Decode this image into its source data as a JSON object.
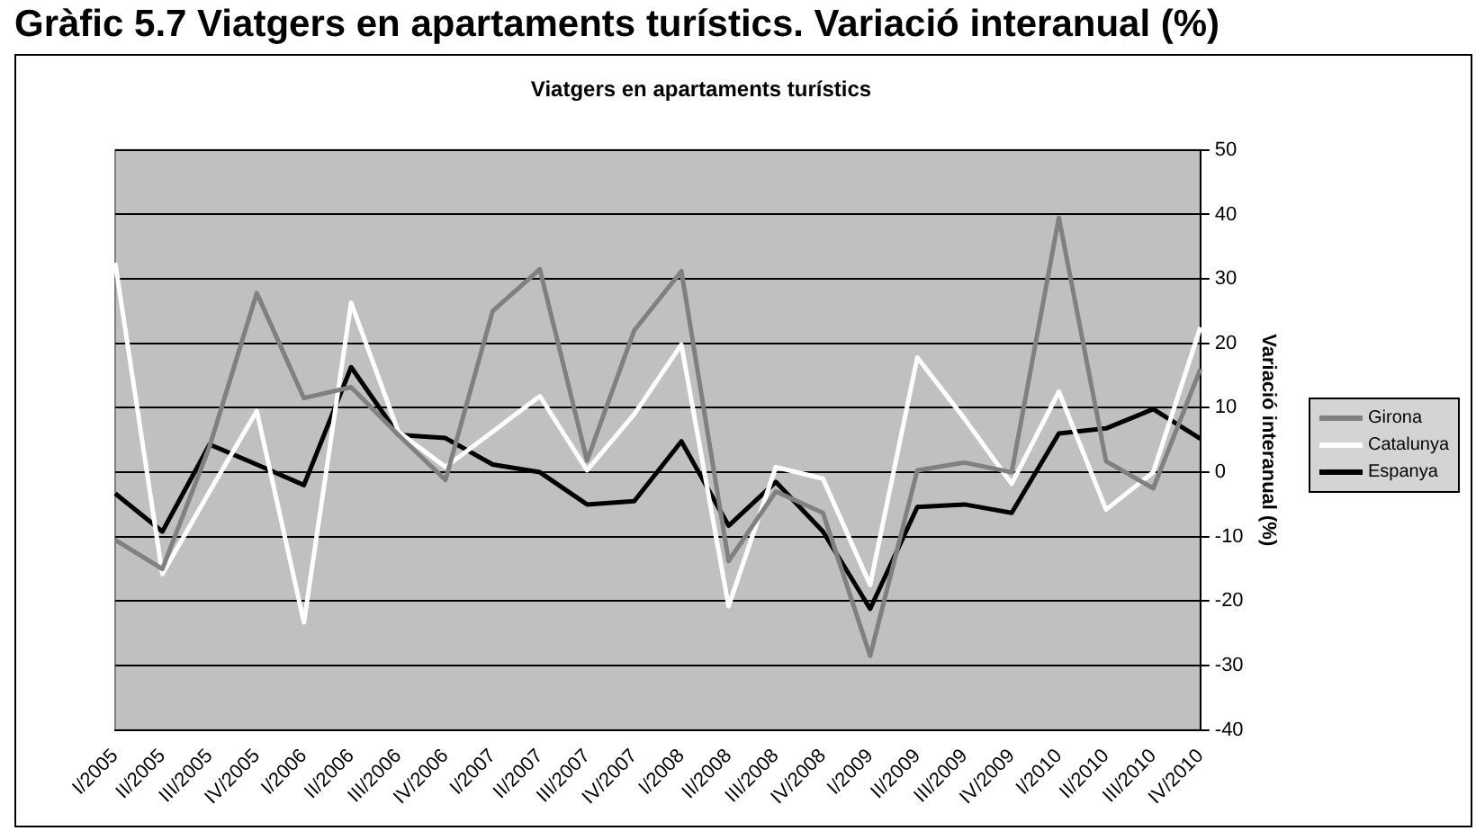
{
  "chart_data": {
    "type": "line",
    "title": "Gràfic 5.7 Viatgers en apartaments turístics. Variació interanual (%)",
    "subtitle": "Viatgers en apartaments turístics",
    "ylabel": "Variació interanual (%)",
    "categories": [
      "I/2005",
      "II/2005",
      "III/2005",
      "IV/2005",
      "I/2006",
      "II/2006",
      "III/2006",
      "IV/2006",
      "I/2007",
      "II/2007",
      "III/2007",
      "IV/2007",
      "I/2008",
      "II/2008",
      "III/2008",
      "IV/2008",
      "I/2009",
      "II/2009",
      "III/2009",
      "IV/2009",
      "I/2010",
      "II/2010",
      "III/2010",
      "IV/2010"
    ],
    "series": [
      {
        "name": "Girona",
        "color": "#808080",
        "values": [
          -10.5,
          -15,
          4,
          27.8,
          11.5,
          13.2,
          5.8,
          -1.2,
          25,
          31.5,
          1.8,
          22,
          31.2,
          -13.8,
          -3,
          -6.3,
          -28.5,
          0.3,
          1.5,
          0,
          39.5,
          1.7,
          -2.5,
          16
        ]
      },
      {
        "name": "Catalunya",
        "color": "#ffffff",
        "values": [
          32.5,
          -15.8,
          -3,
          9.5,
          -23.3,
          26.3,
          6.3,
          0.8,
          6.3,
          11.8,
          0.3,
          9,
          19.8,
          -20.8,
          0.8,
          -1,
          -17.5,
          17.8,
          8.3,
          -1.8,
          12.5,
          -5.8,
          0,
          22.5
        ]
      },
      {
        "name": "Espanya",
        "color": "#000000",
        "values": [
          -3.3,
          -9.2,
          4.3,
          1.2,
          -2,
          16.3,
          5.8,
          5.3,
          1.2,
          0,
          -5,
          -4.5,
          4.8,
          -8.3,
          -1.5,
          -9.2,
          -21.2,
          -5.4,
          -5,
          -6.3,
          6,
          6.8,
          9.8,
          5.2
        ]
      }
    ],
    "ylim": [
      -40,
      50
    ],
    "yticks": [
      -40,
      -30,
      -20,
      -10,
      0,
      10,
      20,
      30,
      40,
      50
    ],
    "grid": "y",
    "legend": "right",
    "marker": "none",
    "line_style": "solid"
  }
}
